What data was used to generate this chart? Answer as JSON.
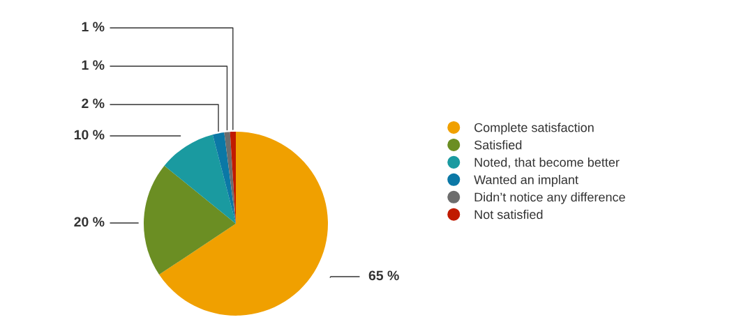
{
  "chart_data": {
    "type": "pie",
    "categories": [
      "Complete satisfaction",
      "Satisfied",
      "Noted, that become better",
      "Wanted an implant",
      "Didn’t notice any difference",
      "Not satisfied"
    ],
    "values": [
      65,
      20,
      10,
      2,
      1,
      1
    ],
    "value_labels": [
      "65 %",
      "20 %",
      "10 %",
      "2 %",
      "1 %",
      "1 %"
    ],
    "colors": [
      "#f0a000",
      "#6b8e23",
      "#1a9aa0",
      "#0b78a6",
      "#6d6d6d",
      "#c01a00"
    ],
    "legend": "right"
  }
}
